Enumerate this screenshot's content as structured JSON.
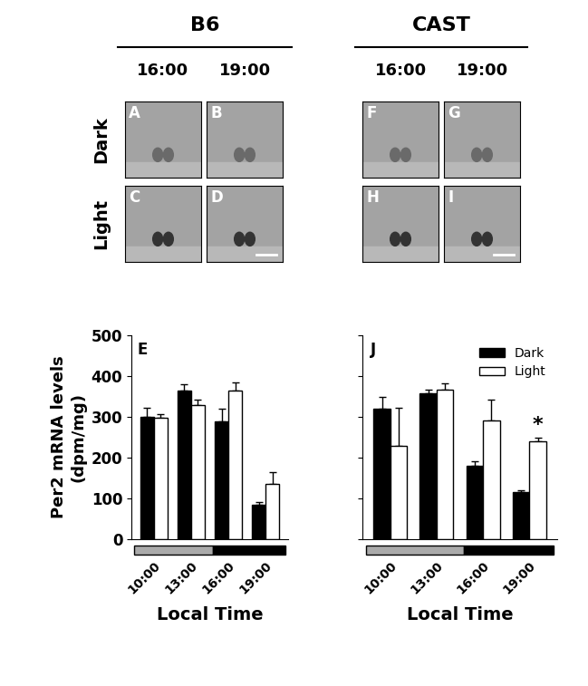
{
  "header": {
    "groups": [
      "B6",
      "CAST"
    ],
    "times": [
      "16:00",
      "19:00"
    ],
    "rows": [
      "Dark",
      "Light"
    ],
    "panel_letters": {
      "B6": [
        [
          "A",
          "B"
        ],
        [
          "C",
          "D"
        ]
      ],
      "CAST": [
        [
          "F",
          "G"
        ],
        [
          "H",
          "I"
        ]
      ]
    }
  },
  "chart_data": [
    {
      "type": "bar",
      "panel": "E",
      "ylabel": "Per2 mRNA levels\n(dpm/mg)",
      "xlabel": "Local Time",
      "categories": [
        "10:00",
        "13:00",
        "16:00",
        "19:00"
      ],
      "series": [
        {
          "name": "Dark",
          "color": "#000000",
          "values": [
            300,
            365,
            290,
            85
          ],
          "errors": [
            22,
            15,
            30,
            6
          ]
        },
        {
          "name": "Light",
          "color": "#ffffff",
          "values": [
            297,
            330,
            365,
            135
          ],
          "errors": [
            10,
            12,
            20,
            30
          ]
        }
      ],
      "ylim": [
        0,
        500
      ],
      "yticks": [
        0,
        100,
        200,
        300,
        400,
        500
      ]
    },
    {
      "type": "bar",
      "panel": "J",
      "xlabel": "Local Time",
      "categories": [
        "10:00",
        "13:00",
        "16:00",
        "19:00"
      ],
      "series": [
        {
          "name": "Dark",
          "color": "#000000",
          "values": [
            320,
            357,
            180,
            115
          ],
          "errors": [
            30,
            10,
            12,
            5
          ]
        },
        {
          "name": "Light",
          "color": "#ffffff",
          "values": [
            228,
            367,
            292,
            240
          ],
          "errors": [
            95,
            15,
            50,
            10
          ]
        }
      ],
      "ylim": [
        0,
        500
      ],
      "yticks": [
        0,
        100,
        200,
        300,
        400,
        500
      ],
      "tick_labels": "x",
      "legend": "upper right",
      "annotations": [
        {
          "text": "*",
          "category": "19:00",
          "series": "Light"
        }
      ]
    }
  ]
}
